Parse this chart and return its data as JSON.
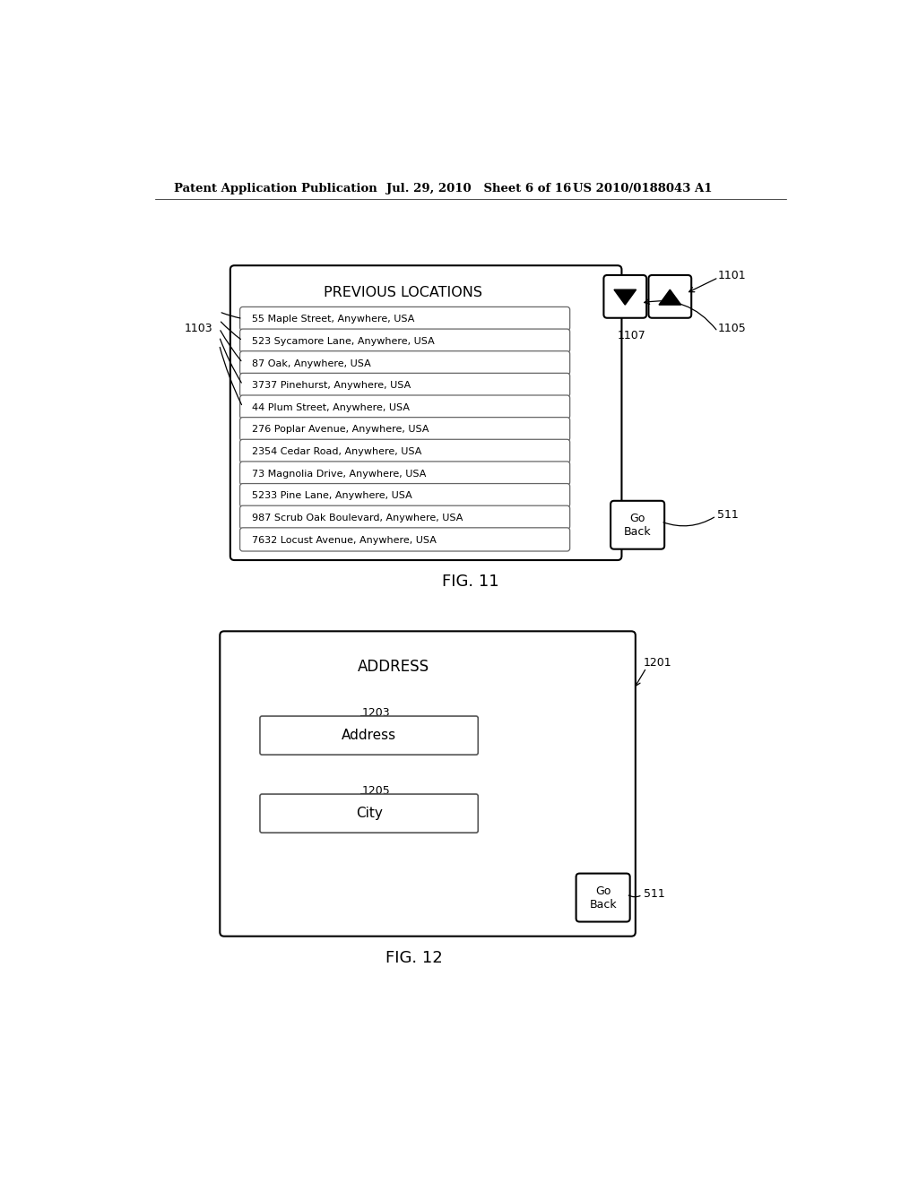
{
  "bg_color": "#ffffff",
  "header_left": "Patent Application Publication",
  "header_mid": "Jul. 29, 2010   Sheet 6 of 16",
  "header_right": "US 2010/0188043 A1",
  "fig11_title": "PREVIOUS LOCATIONS",
  "fig11_label": "FIG. 11",
  "fig11_locations": [
    "55 Maple Street, Anywhere, USA",
    "523 Sycamore Lane, Anywhere, USA",
    "87 Oak, Anywhere, USA",
    "3737 Pinehurst, Anywhere, USA",
    "44 Plum Street, Anywhere, USA",
    "276 Poplar Avenue, Anywhere, USA",
    "2354 Cedar Road, Anywhere, USA",
    "73 Magnolia Drive, Anywhere, USA",
    "5233 Pine Lane, Anywhere, USA",
    "987 Scrub Oak Boulevard, Anywhere, USA",
    "7632 Locust Avenue, Anywhere, USA"
  ],
  "fig12_title": "ADDRESS",
  "fig12_label": "FIG. 12",
  "fig12_fields": [
    "Address",
    "City"
  ],
  "fig12_field_labels": [
    "1203",
    "1205"
  ],
  "text_color": "#000000"
}
